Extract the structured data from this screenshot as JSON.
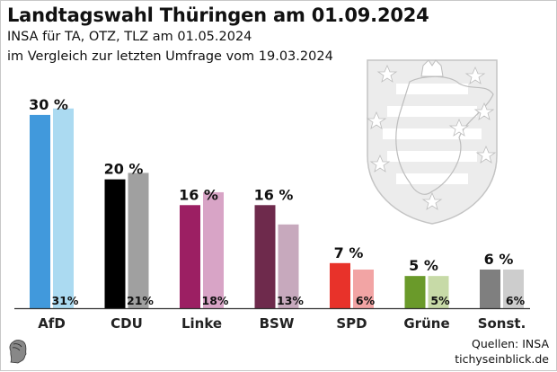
{
  "header": {
    "title": "Landtagswahl Thüringen am 01.09.2024",
    "subtitle1": "INSA für TA, OTZ, TLZ am 01.05.2024",
    "subtitle2": "im Vergleich zur letzten Umfrage vom 19.03.2024"
  },
  "footer": {
    "source": "Quellen: INSA",
    "site": "tichyseinblick.de"
  },
  "decor": {
    "crest": "thuringia-coat-of-arms-icon",
    "logo": "tichys-einblick-head-logo-icon"
  },
  "chart_data": {
    "type": "bar",
    "title": "Landtagswahl Thüringen am 01.09.2024",
    "xlabel": "",
    "ylabel": "",
    "ylim": [
      0,
      31
    ],
    "grid": false,
    "legend": "none",
    "categories": [
      "AfD",
      "CDU",
      "Linke",
      "BSW",
      "SPD",
      "Grüne",
      "Sonst."
    ],
    "series": [
      {
        "name": "INSA 01.05.2024",
        "values": [
          30,
          20,
          16,
          16,
          7,
          5,
          6
        ],
        "labels": [
          "30 %",
          "20 %",
          "16 %",
          "16 %",
          "7 %",
          "5 %",
          "6 %"
        ],
        "colors": [
          "#4199dc",
          "#000000",
          "#9c1f63",
          "#6e2a4c",
          "#e8322a",
          "#6a9a2a",
          "#7f7f7f"
        ]
      },
      {
        "name": "INSA 19.03.2024",
        "values": [
          31,
          21,
          18,
          13,
          6,
          5,
          6
        ],
        "labels": [
          "31%",
          "21%",
          "18%",
          "13%",
          "6%",
          "5%",
          "6%"
        ],
        "colors": [
          "#abdaf1",
          "#a0a0a0",
          "#d8a4c6",
          "#c7a9bd",
          "#f2a4a4",
          "#c7daa7",
          "#cdcdcd"
        ]
      }
    ]
  }
}
